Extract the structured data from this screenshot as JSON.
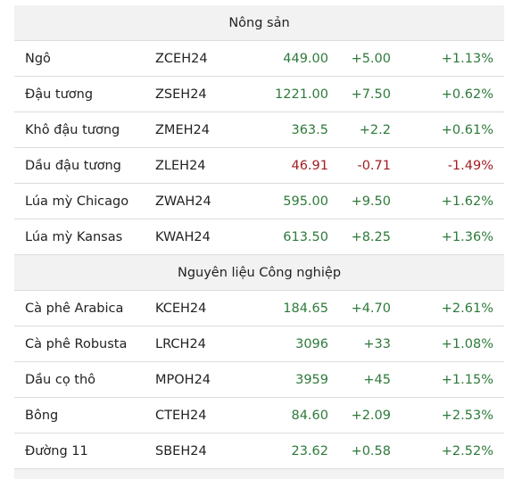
{
  "sections": [
    {
      "title": "Nông sản",
      "rows": [
        {
          "name": "Ngô",
          "code": "ZCEH24",
          "price": "449.00",
          "change": "+5.00",
          "pct": "+1.13%",
          "dir": "up"
        },
        {
          "name": "Đậu tương",
          "code": "ZSEH24",
          "price": "1221.00",
          "change": "+7.50",
          "pct": "+0.62%",
          "dir": "up"
        },
        {
          "name": "Khô đậu tương",
          "code": "ZMEH24",
          "price": "363.5",
          "change": "+2.2",
          "pct": "+0.61%",
          "dir": "up"
        },
        {
          "name": "Dầu đậu tương",
          "code": "ZLEH24",
          "price": "46.91",
          "change": "-0.71",
          "pct": "-1.49%",
          "dir": "down"
        },
        {
          "name": "Lúa mỳ Chicago",
          "code": "ZWAH24",
          "price": "595.00",
          "change": "+9.50",
          "pct": "+1.62%",
          "dir": "up"
        },
        {
          "name": "Lúa mỳ Kansas",
          "code": "KWAH24",
          "price": "613.50",
          "change": "+8.25",
          "pct": "+1.36%",
          "dir": "up"
        }
      ]
    },
    {
      "title": "Nguyên liệu Công nghiệp",
      "rows": [
        {
          "name": "Cà phê Arabica",
          "code": "KCEH24",
          "price": "184.65",
          "change": "+4.70",
          "pct": "+2.61%",
          "dir": "up"
        },
        {
          "name": "Cà phê Robusta",
          "code": "LRCH24",
          "price": "3096",
          "change": "+33",
          "pct": "+1.08%",
          "dir": "up"
        },
        {
          "name": "Dầu cọ thô",
          "code": "MPOH24",
          "price": "3959",
          "change": "+45",
          "pct": "+1.15%",
          "dir": "up"
        },
        {
          "name": "Bông",
          "code": "CTEH24",
          "price": "84.60",
          "change": "+2.09",
          "pct": "+2.53%",
          "dir": "up"
        },
        {
          "name": "Đường 11",
          "code": "SBEH24",
          "price": "23.62",
          "change": "+0.58",
          "pct": "+2.52%",
          "dir": "up"
        }
      ]
    }
  ],
  "colors": {
    "up": "#2d7a3a",
    "down": "#a31c22",
    "header_bg": "#f2f2f2"
  }
}
